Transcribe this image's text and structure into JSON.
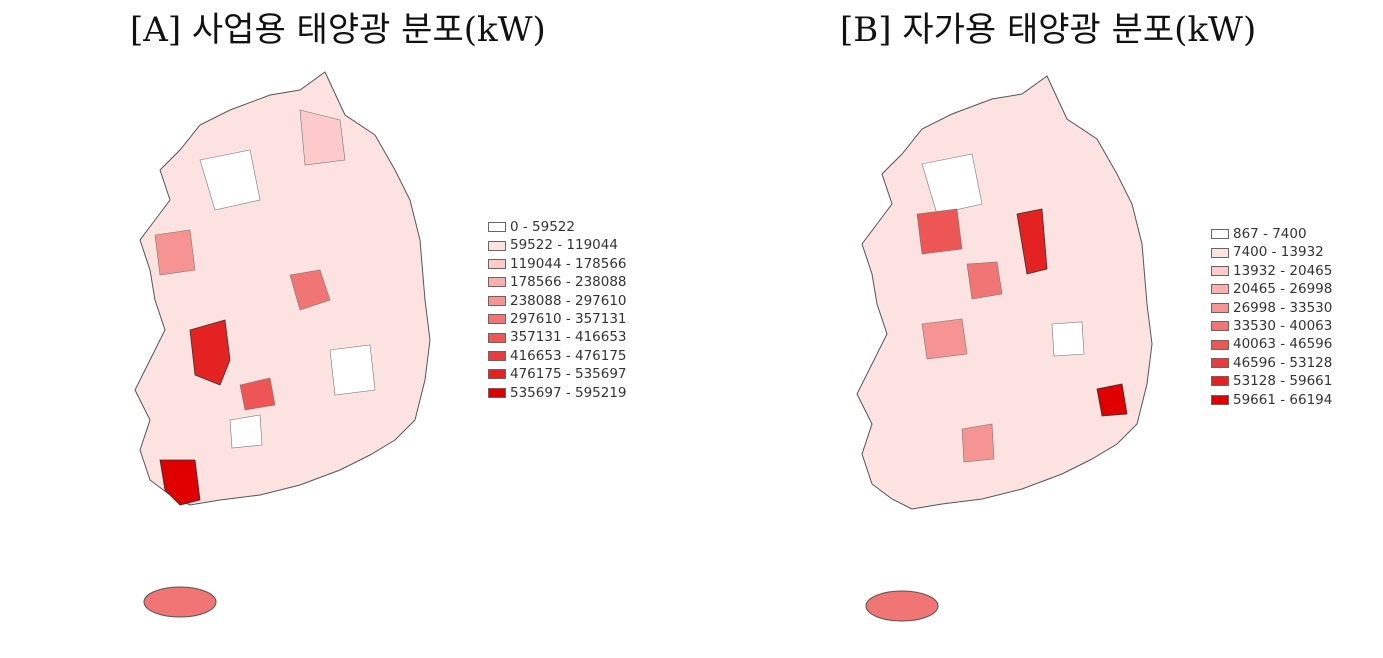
{
  "maps": [
    {
      "title": "[A] 사업용 태양광 분포(kW)",
      "legend": [
        "0 - 59522",
        "59522 - 119044",
        "119044 - 178566",
        "178566 - 238088",
        "238088 - 297610",
        "297610 - 357131",
        "357131 - 416653",
        "416653 - 476175",
        "476175 - 535697",
        "535697 - 595219"
      ]
    },
    {
      "title": "[B] 자가용 태양광 분포(kW)",
      "legend": [
        "867 - 7400",
        "7400 - 13932",
        "13932 - 20465",
        "20465 - 26998",
        "26998 - 33530",
        "33530 - 40063",
        "40063 - 46596",
        "46596 - 53128",
        "53128 - 59661",
        "59661 - 66194"
      ]
    }
  ],
  "legend_colors": [
    "#ffffff",
    "#fde2e2",
    "#fccaca",
    "#faafaf",
    "#f69393",
    "#f27575",
    "#ee5656",
    "#ea3c3c",
    "#e52222",
    "#e00000"
  ]
}
